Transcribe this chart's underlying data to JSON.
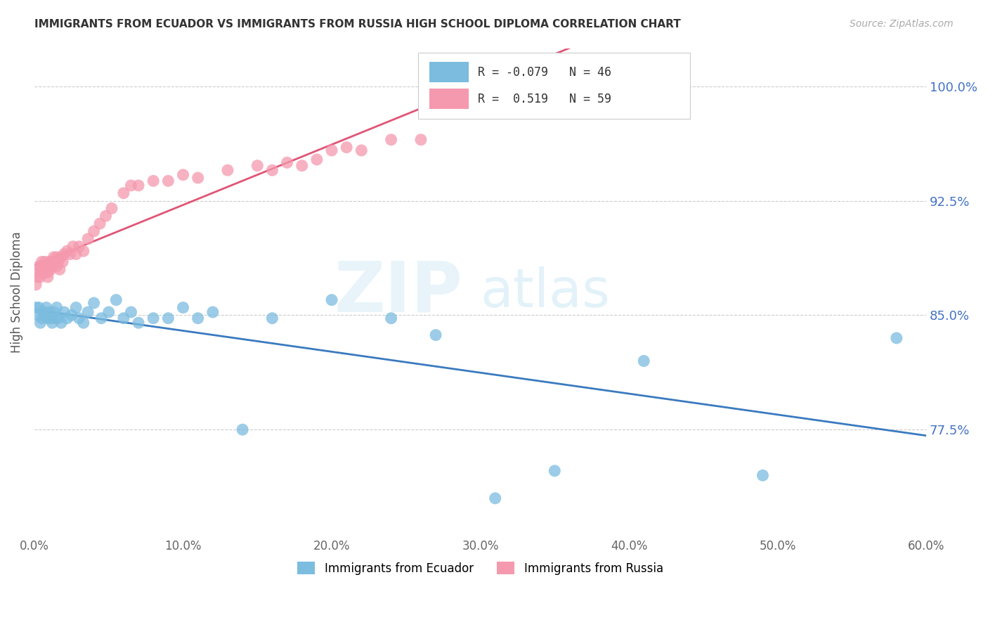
{
  "title": "IMMIGRANTS FROM ECUADOR VS IMMIGRANTS FROM RUSSIA HIGH SCHOOL DIPLOMA CORRELATION CHART",
  "source": "Source: ZipAtlas.com",
  "ylabel": "High School Diploma",
  "x_min": 0.0,
  "x_max": 0.6,
  "y_min": 0.705,
  "y_max": 1.025,
  "color_ecuador": "#7bbcdf",
  "color_russia": "#f599ae",
  "color_ecuador_line": "#3a7abf",
  "color_russia_line": "#e05575",
  "watermark_zip": "ZIP",
  "watermark_atlas": "atlas",
  "ecuador_x": [
    0.001,
    0.002,
    0.003,
    0.004,
    0.005,
    0.006,
    0.007,
    0.008,
    0.009,
    0.01,
    0.011,
    0.012,
    0.013,
    0.014,
    0.015,
    0.016,
    0.018,
    0.02,
    0.022,
    0.025,
    0.028,
    0.03,
    0.033,
    0.036,
    0.04,
    0.045,
    0.05,
    0.055,
    0.06,
    0.065,
    0.07,
    0.08,
    0.09,
    0.1,
    0.11,
    0.12,
    0.14,
    0.16,
    0.2,
    0.24,
    0.27,
    0.31,
    0.35,
    0.41,
    0.49,
    0.58
  ],
  "ecuador_y": [
    0.855,
    0.85,
    0.855,
    0.845,
    0.848,
    0.852,
    0.85,
    0.855,
    0.848,
    0.852,
    0.848,
    0.845,
    0.852,
    0.848,
    0.855,
    0.848,
    0.845,
    0.852,
    0.848,
    0.85,
    0.855,
    0.848,
    0.845,
    0.852,
    0.858,
    0.848,
    0.852,
    0.86,
    0.848,
    0.852,
    0.845,
    0.848,
    0.848,
    0.855,
    0.848,
    0.852,
    0.775,
    0.848,
    0.86,
    0.848,
    0.837,
    0.73,
    0.748,
    0.82,
    0.745,
    0.835
  ],
  "russia_x": [
    0.001,
    0.002,
    0.003,
    0.003,
    0.004,
    0.004,
    0.005,
    0.005,
    0.006,
    0.006,
    0.007,
    0.007,
    0.008,
    0.008,
    0.009,
    0.009,
    0.01,
    0.01,
    0.011,
    0.012,
    0.012,
    0.013,
    0.014,
    0.015,
    0.015,
    0.016,
    0.017,
    0.018,
    0.019,
    0.02,
    0.022,
    0.024,
    0.026,
    0.028,
    0.03,
    0.033,
    0.036,
    0.04,
    0.044,
    0.048,
    0.052,
    0.06,
    0.065,
    0.07,
    0.08,
    0.09,
    0.1,
    0.11,
    0.13,
    0.15,
    0.16,
    0.17,
    0.18,
    0.19,
    0.2,
    0.21,
    0.22,
    0.24,
    0.26
  ],
  "russia_y": [
    0.87,
    0.875,
    0.878,
    0.882,
    0.875,
    0.882,
    0.878,
    0.885,
    0.882,
    0.88,
    0.878,
    0.885,
    0.88,
    0.882,
    0.878,
    0.875,
    0.882,
    0.885,
    0.88,
    0.885,
    0.882,
    0.888,
    0.885,
    0.888,
    0.882,
    0.885,
    0.88,
    0.888,
    0.885,
    0.89,
    0.892,
    0.89,
    0.895,
    0.89,
    0.895,
    0.892,
    0.9,
    0.905,
    0.91,
    0.915,
    0.92,
    0.93,
    0.935,
    0.935,
    0.938,
    0.938,
    0.942,
    0.94,
    0.945,
    0.948,
    0.945,
    0.95,
    0.948,
    0.952,
    0.958,
    0.96,
    0.958,
    0.965,
    0.965
  ],
  "y_tick_positions": [
    0.775,
    0.85,
    0.925,
    1.0
  ],
  "y_tick_labels": [
    "77.5%",
    "85.0%",
    "92.5%",
    "100.0%"
  ],
  "x_tick_positions": [
    0.0,
    0.1,
    0.2,
    0.3,
    0.4,
    0.5,
    0.6
  ],
  "x_tick_labels": [
    "0.0%",
    "10.0%",
    "20.0%",
    "30.0%",
    "40.0%",
    "50.0%",
    "60.0%"
  ]
}
